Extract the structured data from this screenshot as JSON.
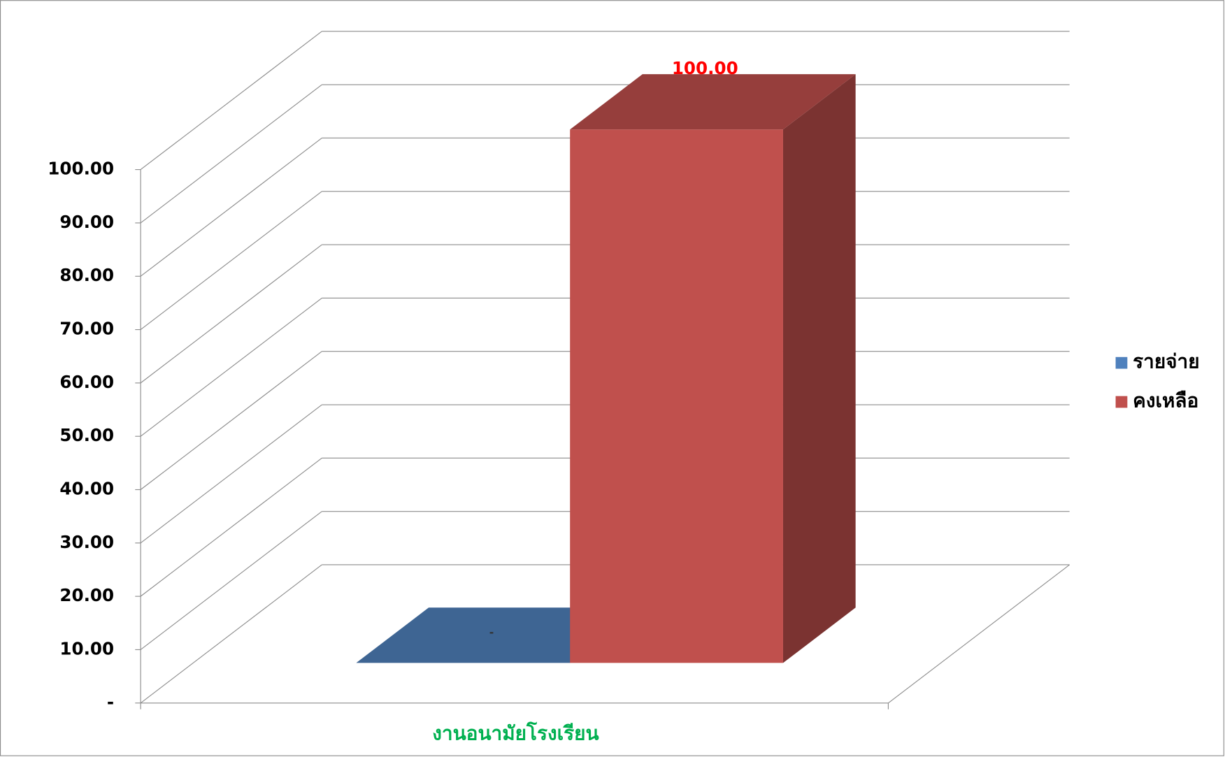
{
  "chart_data": {
    "type": "bar3d",
    "categories": [
      "งานอนามัยโรงเรียน"
    ],
    "series": [
      {
        "name": "รายจ่าย",
        "color": "#4f81bd",
        "values": [
          0
        ],
        "value_labels": [
          "-"
        ]
      },
      {
        "name": "คงเหลือ",
        "color": "#c0504d",
        "values": [
          100
        ],
        "value_labels": [
          "100.00"
        ]
      }
    ],
    "ylim": [
      0,
      100
    ],
    "yticks": [
      {
        "value": 0,
        "label": "-"
      },
      {
        "value": 10,
        "label": "10.00"
      },
      {
        "value": 20,
        "label": "20.00"
      },
      {
        "value": 30,
        "label": "30.00"
      },
      {
        "value": 40,
        "label": "40.00"
      },
      {
        "value": 50,
        "label": "50.00"
      },
      {
        "value": 60,
        "label": "60.00"
      },
      {
        "value": 70,
        "label": "70.00"
      },
      {
        "value": 80,
        "label": "80.00"
      },
      {
        "value": 90,
        "label": "90.00"
      },
      {
        "value": 100,
        "label": "100.00"
      }
    ],
    "grid": true,
    "legend": "right"
  }
}
